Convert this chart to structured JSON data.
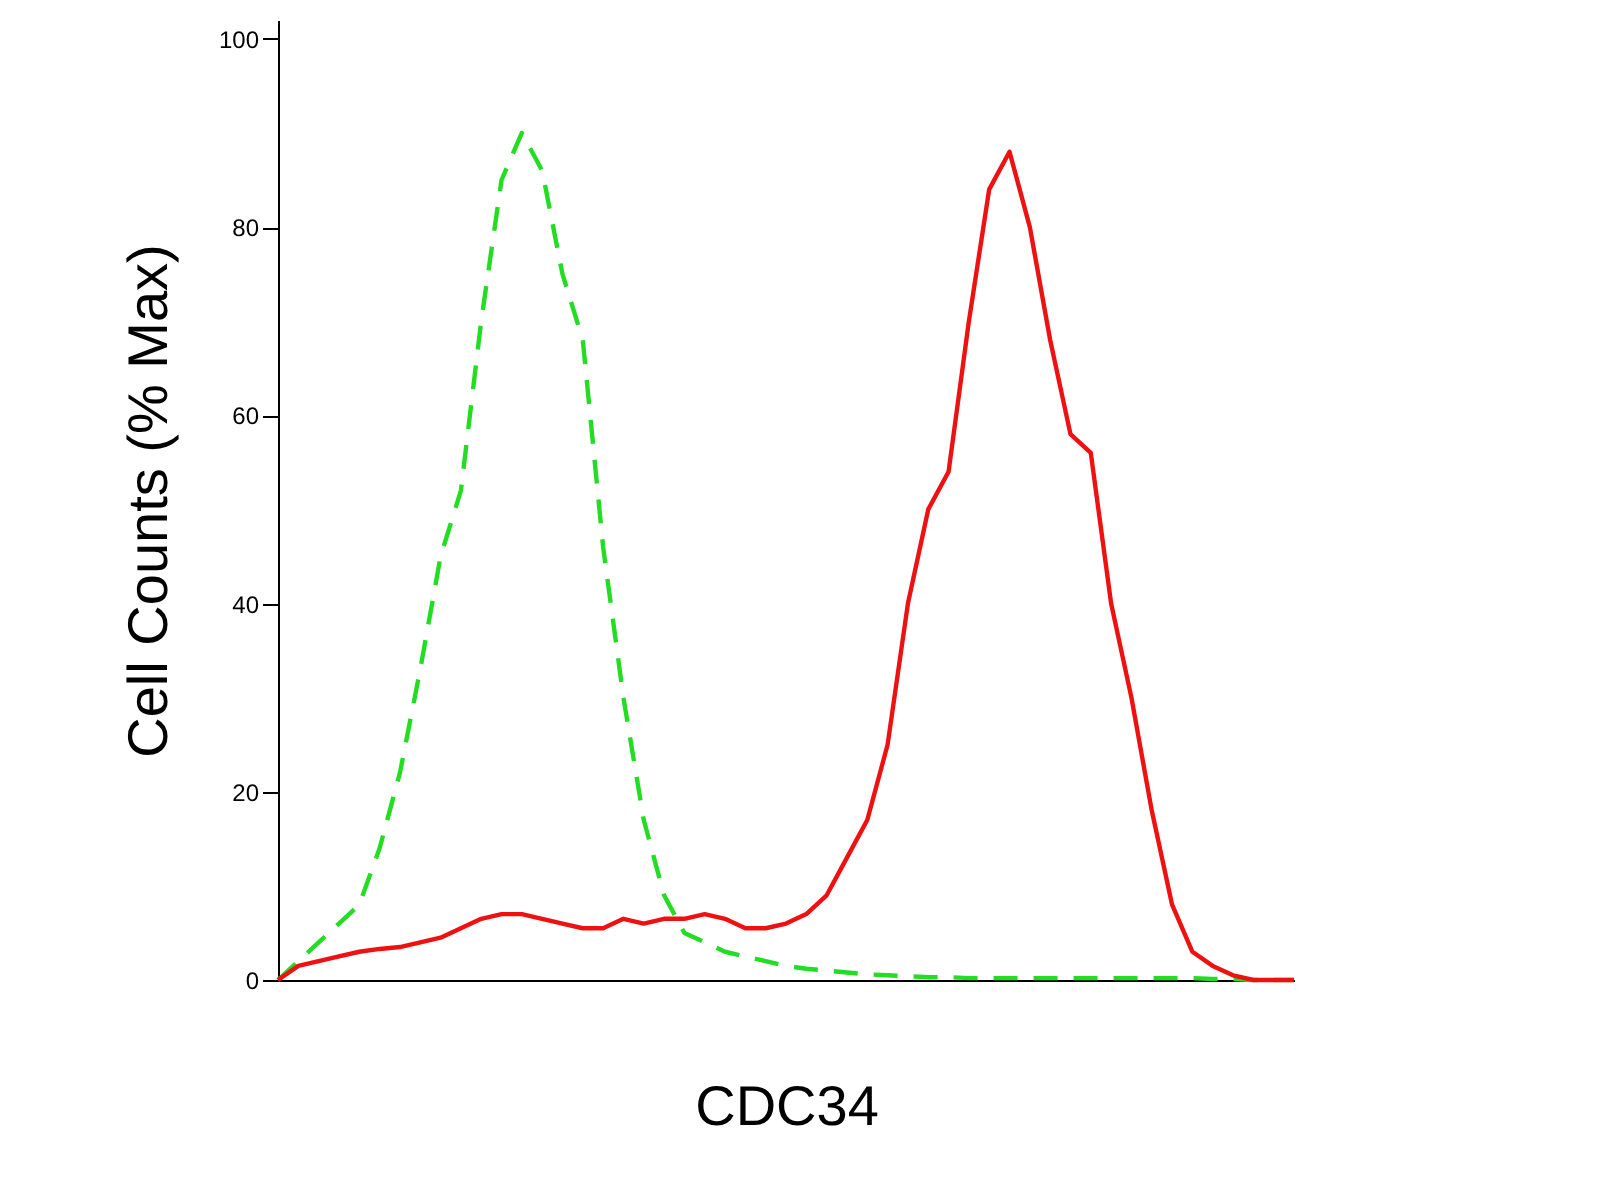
{
  "chart_data": {
    "type": "line",
    "xlabel": "CDC34",
    "ylabel": "Cell Counts (% Max)",
    "categories": [
      null,
      null,
      null,
      null,
      null,
      null,
      null,
      null,
      null,
      null,
      null,
      null,
      null,
      null,
      null,
      null,
      null,
      null,
      null,
      null,
      null,
      null,
      null,
      null,
      null,
      null,
      null,
      null,
      null,
      null,
      null,
      null,
      null,
      null,
      null,
      null,
      null,
      null,
      null,
      null,
      null,
      null,
      null,
      null,
      null,
      null,
      null,
      null,
      null,
      null,
      null
    ],
    "series": [
      {
        "color": "#22dd22",
        "line_style": "dashed",
        "values": [
          0,
          2,
          4,
          6,
          8,
          14,
          22,
          33,
          45,
          52,
          70,
          85,
          90,
          86,
          75,
          68,
          46,
          30,
          17,
          9,
          5,
          4,
          3,
          2.5,
          2,
          1.5,
          1.2,
          1,
          0.8,
          0.6,
          0.5,
          0.4,
          0.3,
          0.3,
          0.2,
          0.2,
          0.2,
          0.2,
          0.2,
          0.2,
          0.2,
          0.2,
          0.2,
          0.2,
          0.2,
          0.2,
          0.1,
          0.1,
          0,
          0,
          0
        ]
      },
      {
        "color": "#ee1111",
        "line_style": "solid",
        "values": [
          0,
          1.5,
          2,
          2.5,
          3,
          3.3,
          3.5,
          4,
          4.5,
          5.5,
          6.5,
          7,
          7,
          6.5,
          6,
          5.5,
          5.5,
          6.5,
          6,
          6.5,
          6.5,
          7,
          6.5,
          5.5,
          5.5,
          6,
          7,
          9,
          13,
          17,
          25,
          40,
          50,
          54,
          70,
          84,
          88,
          80,
          68,
          58,
          56,
          40,
          30,
          18,
          8,
          3,
          1.5,
          0.5,
          0,
          0,
          0
        ]
      }
    ],
    "ylim": [
      0,
      102
    ],
    "yticks": [
      0,
      20,
      40,
      60,
      80,
      100
    ],
    "grid": false,
    "legend": false
  }
}
